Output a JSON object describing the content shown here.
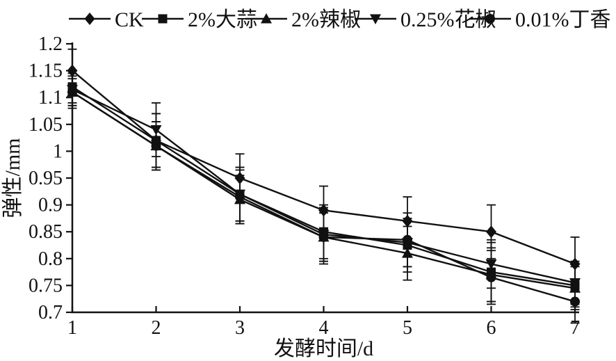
{
  "figure": {
    "background": "#ffffff",
    "ink_color": "#111111"
  },
  "chart_data": {
    "type": "line",
    "title": "",
    "xlabel": "发酵时间/d",
    "ylabel": "弹性/mm",
    "x": [
      1,
      2,
      3,
      4,
      5,
      6,
      7
    ],
    "xtick_labels": [
      "1",
      "2",
      "3",
      "4",
      "5",
      "6",
      "7"
    ],
    "yticks": [
      1.2,
      1.15,
      1.1,
      1.05,
      1,
      0.95,
      0.9,
      0.85,
      0.8,
      0.75,
      0.7
    ],
    "ytick_labels": [
      "1.2",
      "1.15",
      "1.1",
      "1.05",
      "1",
      "0.95",
      "0.9",
      "0.85",
      "0.8",
      "0.75",
      "0.7"
    ],
    "xlim": [
      1,
      7
    ],
    "ylim": [
      0.7,
      1.2
    ],
    "grid": false,
    "legend_position": "top",
    "error_bars": true,
    "series": [
      {
        "name": "CK",
        "marker": "diamond",
        "values": [
          1.15,
          1.02,
          0.95,
          0.89,
          0.87,
          0.85,
          0.79
        ],
        "errors": [
          0.04,
          0.05,
          0.045,
          0.045,
          0.045,
          0.05,
          0.05
        ]
      },
      {
        "name": "2%大蒜",
        "marker": "square",
        "values": [
          1.12,
          1.02,
          0.92,
          0.85,
          0.825,
          0.775,
          0.75
        ],
        "errors": [
          0.03,
          0.05,
          0.05,
          0.05,
          0.05,
          0.055,
          0.04
        ]
      },
      {
        "name": "2%辣椒",
        "marker": "triangle-up",
        "values": [
          1.11,
          1.01,
          0.91,
          0.84,
          0.81,
          0.77,
          0.745
        ],
        "errors": [
          0.025,
          0.045,
          0.045,
          0.045,
          0.05,
          0.05,
          0.04
        ]
      },
      {
        "name": "0.25%花椒",
        "marker": "triangle-down",
        "values": [
          1.115,
          1.04,
          0.92,
          0.845,
          0.83,
          0.79,
          0.755
        ],
        "errors": [
          0.03,
          0.05,
          0.05,
          0.05,
          0.045,
          0.045,
          0.04
        ]
      },
      {
        "name": "0.01%丁香",
        "marker": "circle",
        "values": [
          1.11,
          1.01,
          0.915,
          0.84,
          0.835,
          0.765,
          0.72
        ],
        "errors": [
          0.03,
          0.045,
          0.05,
          0.05,
          0.05,
          0.05,
          0.04
        ]
      }
    ]
  }
}
